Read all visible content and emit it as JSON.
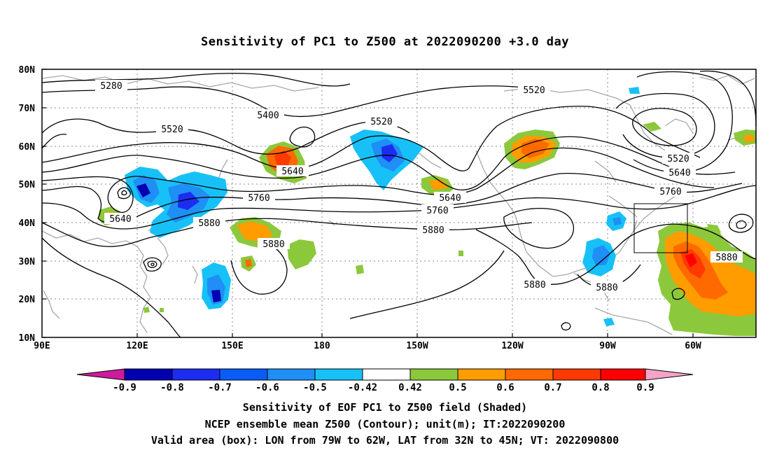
{
  "title": "Sensitivity of PC1 to Z500 at 2022090200 +3.0 day",
  "lat_labels": [
    "80N",
    "70N",
    "60N",
    "50N",
    "40N",
    "30N",
    "20N",
    "10N"
  ],
  "lon_labels": [
    "90E",
    "120E",
    "150E",
    "180",
    "150W",
    "120W",
    "90W",
    "60W"
  ],
  "contour_labels": [
    {
      "text": "5280"
    },
    {
      "text": "5400"
    },
    {
      "text": "5520"
    },
    {
      "text": "5520"
    },
    {
      "text": "5520"
    },
    {
      "text": "5520"
    },
    {
      "text": "5640"
    },
    {
      "text": "5640"
    },
    {
      "text": "5640"
    },
    {
      "text": "5640"
    },
    {
      "text": "5760"
    },
    {
      "text": "5760"
    },
    {
      "text": "5760"
    },
    {
      "text": "5880"
    },
    {
      "text": "5880"
    },
    {
      "text": "5880"
    },
    {
      "text": "5880"
    },
    {
      "text": "5880"
    },
    {
      "text": "5880"
    }
  ],
  "colorbar": {
    "labels": [
      "-0.9",
      "-0.8",
      "-0.7",
      "-0.6",
      "-0.5",
      "-0.42",
      "0.42",
      "0.5",
      "0.6",
      "0.7",
      "0.8",
      "0.9"
    ],
    "colors": [
      "#0000b0",
      "#1c2cf0",
      "#0a5cf7",
      "#1f8ef5",
      "#17c1f7",
      "#ffffff",
      "#8cc83c",
      "#ff9c00",
      "#ff6a00",
      "#ff3a00",
      "#ff0000"
    ],
    "low_end_color": "#cc1b9c",
    "high_end_color": "#f5a3c8"
  },
  "captions": [
    "Sensitivity of EOF PC1 to Z500 field (Shaded)",
    "NCEP ensemble mean Z500 (Contour); unit(m); IT:2022090200",
    "Valid area (box): LON from 79W to 62W, LAT from 32N to 45N; VT: 2022090800"
  ]
}
